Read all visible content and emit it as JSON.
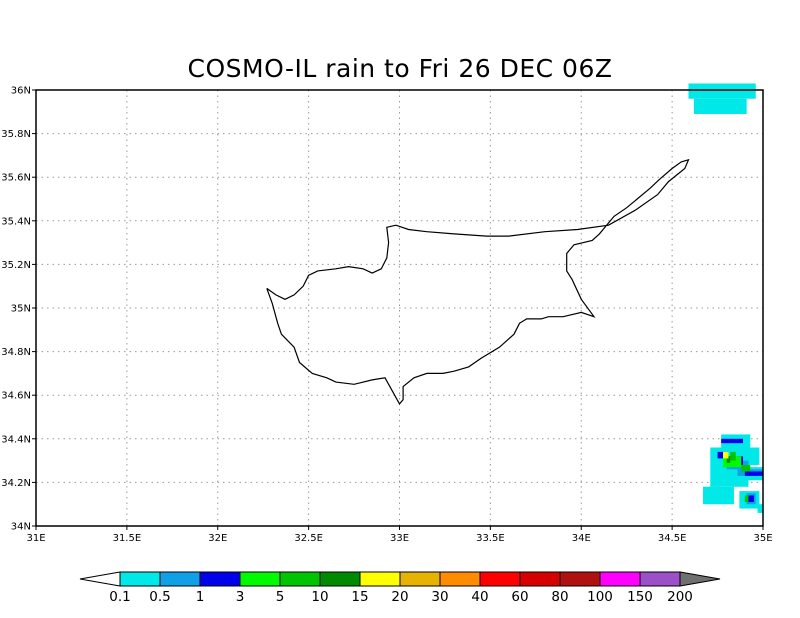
{
  "title": "COSMO-IL rain to Fri 26 DEC 06Z",
  "map": {
    "lon_range": [
      31,
      35
    ],
    "lat_range": [
      34,
      36
    ],
    "lon_ticks": [
      {
        "value": 31,
        "label": "31E"
      },
      {
        "value": 31.5,
        "label": "31.5E"
      },
      {
        "value": 32,
        "label": "32E"
      },
      {
        "value": 32.5,
        "label": "32.5E"
      },
      {
        "value": 33,
        "label": "33E"
      },
      {
        "value": 33.5,
        "label": "33.5E"
      },
      {
        "value": 34,
        "label": "34E"
      },
      {
        "value": 34.5,
        "label": "34.5E"
      },
      {
        "value": 35,
        "label": "35E"
      }
    ],
    "lat_ticks": [
      {
        "value": 34,
        "label": "34N"
      },
      {
        "value": 34.2,
        "label": "34.2N"
      },
      {
        "value": 34.4,
        "label": "34.4N"
      },
      {
        "value": 34.6,
        "label": "34.6N"
      },
      {
        "value": 34.8,
        "label": "34.8N"
      },
      {
        "value": 35,
        "label": "35N"
      },
      {
        "value": 35.2,
        "label": "35.2N"
      },
      {
        "value": 35.4,
        "label": "35.4N"
      },
      {
        "value": 35.6,
        "label": "35.6N"
      },
      {
        "value": 35.8,
        "label": "35.8N"
      },
      {
        "value": 36,
        "label": "36N"
      }
    ],
    "gridlines": true,
    "coastline_lonlat": [
      [
        32.27,
        35.09
      ],
      [
        32.3,
        35.02
      ],
      [
        32.33,
        34.93
      ],
      [
        32.35,
        34.88
      ],
      [
        32.42,
        34.82
      ],
      [
        32.45,
        34.75
      ],
      [
        32.52,
        34.7
      ],
      [
        32.6,
        34.68
      ],
      [
        32.65,
        34.66
      ],
      [
        32.75,
        34.65
      ],
      [
        32.85,
        34.67
      ],
      [
        32.92,
        34.68
      ],
      [
        32.98,
        34.59
      ],
      [
        33.0,
        34.56
      ],
      [
        33.02,
        34.58
      ],
      [
        33.02,
        34.64
      ],
      [
        33.08,
        34.68
      ],
      [
        33.15,
        34.7
      ],
      [
        33.24,
        34.7
      ],
      [
        33.3,
        34.71
      ],
      [
        33.38,
        34.73
      ],
      [
        33.45,
        34.77
      ],
      [
        33.55,
        34.82
      ],
      [
        33.63,
        34.88
      ],
      [
        33.66,
        34.93
      ],
      [
        33.7,
        34.95
      ],
      [
        33.78,
        34.95
      ],
      [
        33.82,
        34.96
      ],
      [
        33.9,
        34.96
      ],
      [
        34.0,
        34.98
      ],
      [
        34.07,
        34.96
      ],
      [
        34.0,
        35.04
      ],
      [
        33.95,
        35.13
      ],
      [
        33.92,
        35.17
      ],
      [
        33.92,
        35.25
      ],
      [
        33.96,
        35.29
      ],
      [
        34.06,
        35.31
      ],
      [
        34.1,
        35.34
      ],
      [
        34.18,
        35.42
      ],
      [
        34.25,
        35.46
      ],
      [
        34.38,
        35.55
      ],
      [
        34.43,
        35.59
      ],
      [
        34.5,
        35.64
      ],
      [
        34.55,
        35.67
      ],
      [
        34.59,
        35.68
      ],
      [
        34.57,
        35.64
      ],
      [
        34.48,
        35.58
      ],
      [
        34.42,
        35.52
      ],
      [
        34.3,
        35.45
      ],
      [
        34.15,
        35.38
      ],
      [
        33.98,
        35.36
      ],
      [
        33.8,
        35.35
      ],
      [
        33.6,
        35.33
      ],
      [
        33.48,
        35.33
      ],
      [
        33.3,
        35.34
      ],
      [
        33.15,
        35.35
      ],
      [
        33.05,
        35.36
      ],
      [
        32.98,
        35.38
      ],
      [
        32.93,
        35.37
      ],
      [
        32.94,
        35.3
      ],
      [
        32.93,
        35.23
      ],
      [
        32.9,
        35.18
      ],
      [
        32.85,
        35.16
      ],
      [
        32.8,
        35.18
      ],
      [
        32.72,
        35.19
      ],
      [
        32.65,
        35.18
      ],
      [
        32.55,
        35.17
      ],
      [
        32.5,
        35.15
      ],
      [
        32.47,
        35.1
      ],
      [
        32.42,
        35.06
      ],
      [
        32.37,
        35.04
      ],
      [
        32.32,
        35.06
      ],
      [
        32.27,
        35.09
      ]
    ],
    "rain_cells": [
      {
        "lon": 34.59,
        "lat": 35.96,
        "w": 0.37,
        "h": 0.07,
        "cat": 0
      },
      {
        "lon": 34.62,
        "lat": 35.89,
        "w": 0.29,
        "h": 0.07,
        "cat": 0
      },
      {
        "lon": 34.77,
        "lat": 34.36,
        "w": 0.16,
        "h": 0.06,
        "cat": 0
      },
      {
        "lon": 34.71,
        "lat": 34.18,
        "w": 0.21,
        "h": 0.18,
        "cat": 0
      },
      {
        "lon": 34.72,
        "lat": 34.28,
        "w": 0.26,
        "h": 0.08,
        "cat": 0
      },
      {
        "lon": 34.88,
        "lat": 34.21,
        "w": 0.12,
        "h": 0.06,
        "cat": 0
      },
      {
        "lon": 34.67,
        "lat": 34.1,
        "w": 0.17,
        "h": 0.08,
        "cat": 0
      },
      {
        "lon": 34.7,
        "lat": 34.14,
        "w": 0.06,
        "h": 0.04,
        "cat": 0
      },
      {
        "lon": 34.87,
        "lat": 34.08,
        "w": 0.11,
        "h": 0.08,
        "cat": 0
      },
      {
        "lon": 34.97,
        "lat": 34.06,
        "w": 0.03,
        "h": 0.04,
        "cat": 0
      },
      {
        "lon": 34.8,
        "lat": 34.26,
        "w": 0.12,
        "h": 0.04,
        "cat": 1
      },
      {
        "lon": 34.86,
        "lat": 34.23,
        "w": 0.14,
        "h": 0.03,
        "cat": 1
      },
      {
        "lon": 34.91,
        "lat": 34.1,
        "w": 0.05,
        "h": 0.05,
        "cat": 1
      },
      {
        "lon": 34.77,
        "lat": 34.38,
        "w": 0.12,
        "h": 0.02,
        "cat": 2
      },
      {
        "lon": 34.75,
        "lat": 34.31,
        "w": 0.06,
        "h": 0.03,
        "cat": 2
      },
      {
        "lon": 34.86,
        "lat": 34.28,
        "w": 0.03,
        "h": 0.04,
        "cat": 2
      },
      {
        "lon": 34.9,
        "lat": 34.23,
        "w": 0.1,
        "h": 0.02,
        "cat": 2
      },
      {
        "lon": 34.92,
        "lat": 34.11,
        "w": 0.03,
        "h": 0.03,
        "cat": 2
      },
      {
        "lon": 34.78,
        "lat": 34.27,
        "w": 0.1,
        "h": 0.05,
        "cat": 3
      },
      {
        "lon": 34.82,
        "lat": 34.3,
        "w": 0.03,
        "h": 0.04,
        "cat": 4
      },
      {
        "lon": 34.88,
        "lat": 34.25,
        "w": 0.05,
        "h": 0.03,
        "cat": 4
      },
      {
        "lon": 34.9,
        "lat": 34.11,
        "w": 0.02,
        "h": 0.03,
        "cat": 4
      },
      {
        "lon": 34.8,
        "lat": 34.29,
        "w": 0.02,
        "h": 0.03,
        "cat": 5
      },
      {
        "lon": 34.78,
        "lat": 34.31,
        "w": 0.03,
        "h": 0.03,
        "cat": 6
      }
    ]
  },
  "colorbar": {
    "colors": [
      "#00e8e8",
      "#0fa0e8",
      "#0000ea",
      "#00fa00",
      "#00c400",
      "#008a00",
      "#ffff00",
      "#e6b400",
      "#ff8c00",
      "#ff0000",
      "#d60000",
      "#b01010",
      "#ff00ff",
      "#9b50c8"
    ],
    "under_color": "#ffffff",
    "over_color": "#707070",
    "labels": [
      "0.1",
      "0.5",
      "1",
      "3",
      "5",
      "10",
      "15",
      "20",
      "30",
      "40",
      "60",
      "80",
      "100",
      "150",
      "200"
    ]
  }
}
